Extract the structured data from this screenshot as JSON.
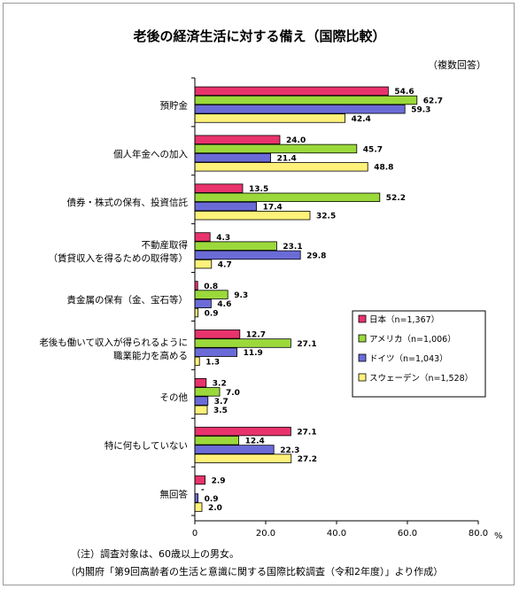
{
  "chart_data": {
    "type": "bar",
    "orientation": "horizontal",
    "title": "老後の経済生活に対する備え（国際比較）",
    "subtitle": "（複数回答）",
    "unit": "%",
    "xlim": [
      0,
      80
    ],
    "xticks": [
      "0",
      "20.0",
      "40.0",
      "60.0",
      "80.0"
    ],
    "grid": false,
    "legend_position": "right-middle",
    "categories": [
      [
        "預貯金"
      ],
      [
        "個人年金への加入"
      ],
      [
        "債券・株式の保有、投資信託"
      ],
      [
        "不動産取得",
        "（賃貸収入を得るための取得等）"
      ],
      [
        "貴金属の保有（金、宝石等）"
      ],
      [
        "老後も働いて収入が得られるように",
        "職業能力を高める"
      ],
      [
        "その他"
      ],
      [
        "特に何もしていない"
      ],
      [
        "無回答"
      ]
    ],
    "series": [
      {
        "name": "日本（n=1,367）",
        "color": "#e8336d",
        "values": [
          54.6,
          24.0,
          13.5,
          4.3,
          0.8,
          12.7,
          3.2,
          27.1,
          2.9
        ],
        "labels": [
          "54.6",
          "24.0",
          "13.5",
          "4.3",
          "0.8",
          "12.7",
          "3.2",
          "27.1",
          "2.9"
        ]
      },
      {
        "name": "アメリカ（n=1,006）",
        "color": "#9bd93b",
        "values": [
          62.7,
          45.7,
          52.2,
          23.1,
          9.3,
          27.1,
          7.0,
          12.4,
          0.0
        ],
        "labels": [
          "62.7",
          "45.7",
          "52.2",
          "23.1",
          "9.3",
          "27.1",
          "7.0",
          "12.4",
          "-"
        ]
      },
      {
        "name": "ドイツ（n=1,043）",
        "color": "#6b6bd8",
        "values": [
          59.3,
          21.4,
          17.4,
          29.8,
          4.6,
          11.9,
          3.7,
          22.3,
          0.9
        ],
        "labels": [
          "59.3",
          "21.4",
          "17.4",
          "29.8",
          "4.6",
          "11.9",
          "3.7",
          "22.3",
          "0.9"
        ]
      },
      {
        "name": "スウェーデン（n=1,528）",
        "color": "#fff27a",
        "values": [
          42.4,
          48.8,
          32.5,
          4.7,
          0.9,
          1.3,
          3.5,
          27.2,
          2.0
        ],
        "labels": [
          "42.4",
          "48.8",
          "32.5",
          "4.7",
          "0.9",
          "1.3",
          "3.5",
          "27.2",
          "2.0"
        ]
      }
    ]
  },
  "notes": {
    "note1": "（注）調査対象は、60歳以上の男女。",
    "note2": "（内閣府「第9回高齢者の生活と意識に関する国際比較調査（令和2年度）」より作成）"
  }
}
